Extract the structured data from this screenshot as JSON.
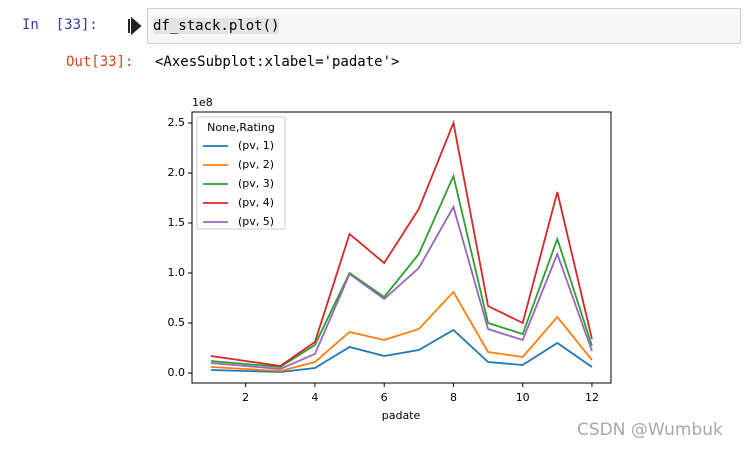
{
  "notebook": {
    "in_prompt": "In  [33]:",
    "code": "df_stack.plot()",
    "out_prompt": "Out[33]:",
    "output_text": "<AxesSubplot:xlabel='padate'>",
    "watermark": "CSDN @Wumbuk"
  },
  "chart_data": {
    "type": "line",
    "xlabel": "padate",
    "y_offset_label": "1e8",
    "legend_title": "None,Rating",
    "legend": "upper left",
    "grid": false,
    "x": [
      1,
      2,
      3,
      4,
      5,
      6,
      7,
      8,
      9,
      10,
      11,
      12
    ],
    "series": [
      {
        "name": "(pv, 1)",
        "color": "#1f77b4",
        "values": [
          0.03,
          0.02,
          0.01,
          0.05,
          0.26,
          0.17,
          0.23,
          0.43,
          0.11,
          0.08,
          0.3,
          0.06
        ]
      },
      {
        "name": "(pv, 2)",
        "color": "#ff7f0e",
        "values": [
          0.06,
          0.04,
          0.02,
          0.11,
          0.41,
          0.33,
          0.44,
          0.81,
          0.21,
          0.16,
          0.56,
          0.13
        ]
      },
      {
        "name": "(pv, 3)",
        "color": "#2ca02c",
        "values": [
          0.12,
          0.09,
          0.06,
          0.28,
          1.0,
          0.76,
          1.19,
          1.97,
          0.5,
          0.39,
          1.34,
          0.27
        ]
      },
      {
        "name": "(pv, 4)",
        "color": "#d62728",
        "values": [
          0.17,
          0.12,
          0.07,
          0.31,
          1.39,
          1.1,
          1.64,
          2.5,
          0.67,
          0.5,
          1.81,
          0.34
        ]
      },
      {
        "name": "(pv, 5)",
        "color": "#9467bd",
        "values": [
          0.1,
          0.07,
          0.04,
          0.19,
          0.99,
          0.74,
          1.05,
          1.66,
          0.44,
          0.33,
          1.19,
          0.22
        ]
      }
    ],
    "xlim": [
      0.45,
      12.55
    ],
    "xticks": [
      2,
      4,
      6,
      8,
      10,
      12
    ],
    "ylim": [
      -0.1,
      2.61
    ],
    "yticks": [
      {
        "value": 0,
        "label": "0.0"
      },
      0.5,
      {
        "value": 1,
        "label": "1.0"
      },
      1.5,
      {
        "value": 2,
        "label": "2.0"
      },
      2.5
    ]
  }
}
